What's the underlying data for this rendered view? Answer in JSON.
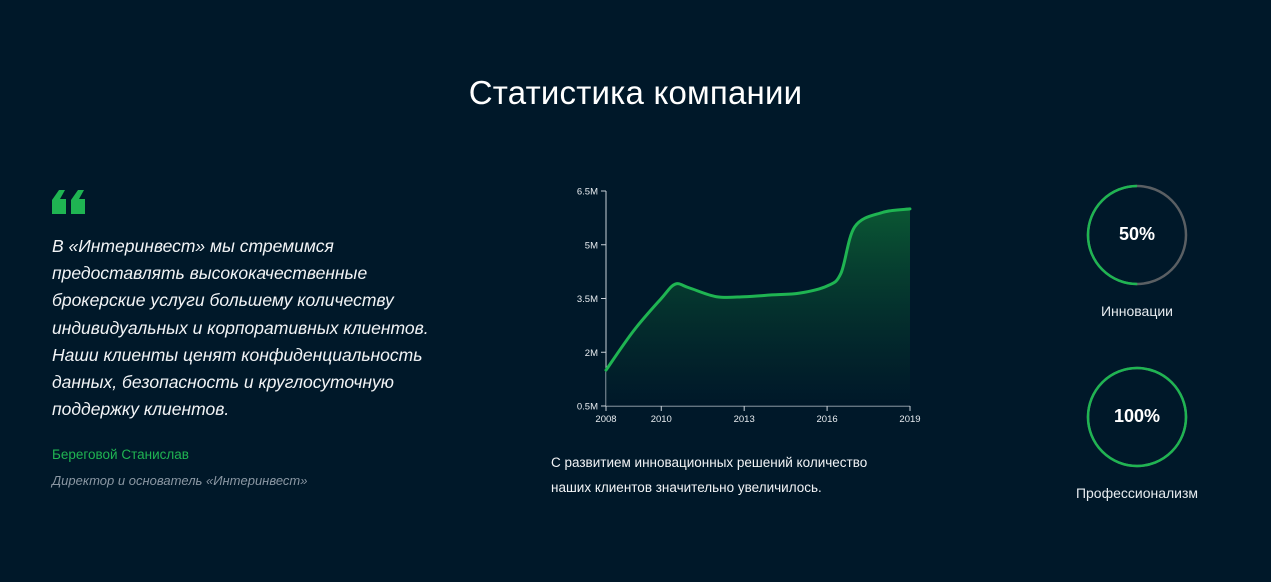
{
  "header": {
    "title": "Статистика компании"
  },
  "quote": {
    "text": "В «Интеринвест» мы стремимся предоставлять высококачественные брокерские услуги большему количеству индивидуальных и корпоративных клиентов. Наши клиенты ценят конфиденциальность данных, безопасность и круглосуточную поддержку клиентов.",
    "author": "Береговой Станислав",
    "role": "Директор и основатель «Интеринвест»"
  },
  "chart": {
    "caption": "С развитием инновационных решений количество наших клиентов значительно увеличилось."
  },
  "chart_data": {
    "type": "area",
    "x": [
      2008,
      2009,
      2010,
      2010.5,
      2011,
      2012,
      2013,
      2014,
      2015,
      2016,
      2016.5,
      2017,
      2018,
      2019
    ],
    "series": [
      {
        "values": [
          1.5,
          2.6,
          3.5,
          3.9,
          3.8,
          3.55,
          3.55,
          3.6,
          3.65,
          3.85,
          4.2,
          5.5,
          5.9,
          6.0
        ]
      }
    ],
    "xticks": [
      "2008",
      "2010",
      "2013",
      "2016",
      "2019"
    ],
    "yticks": [
      "0.5M",
      "2M",
      "3.5M",
      "5M",
      "6.5M"
    ],
    "xlim": [
      2008,
      2019
    ],
    "ylim": [
      0.5,
      6.5
    ],
    "grid": false,
    "line_color": "#1fb452",
    "fill_color": "#0b5a34"
  },
  "stats": [
    {
      "value": "50%",
      "label": "Инновации",
      "progress": 0.5
    },
    {
      "value": "100%",
      "label": "Профессионализм",
      "progress": 1.0
    }
  ],
  "colors": {
    "background": "#001829",
    "accent": "#1fb452",
    "ring_track": "#5a5f63"
  },
  "icons": {
    "quote": "quote-icon"
  }
}
